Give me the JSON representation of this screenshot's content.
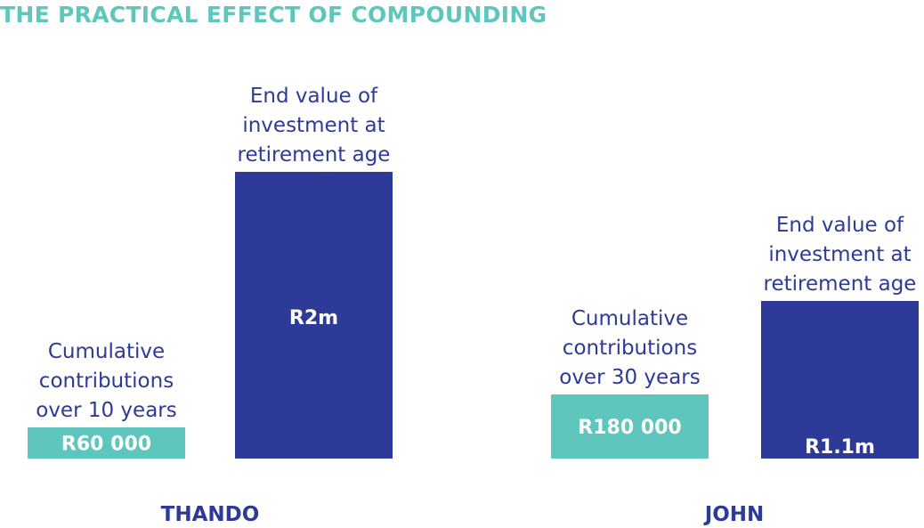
{
  "title": "THE PRACTICAL EFFECT OF COMPOUNDING",
  "colors": {
    "title": "#5ec6bd",
    "contribution_bar": "#5ec6bd",
    "end_value_bar": "#2d3a97",
    "text": "#2d3a97",
    "bar_text": "#ffffff"
  },
  "chart_data": {
    "type": "bar",
    "title": "THE PRACTICAL EFFECT OF COMPOUNDING",
    "categories": [
      "THANDO",
      "JOHN"
    ],
    "series": [
      {
        "values": [
          60000,
          180000
        ],
        "data_labels": [
          "R60 000",
          "R180 000"
        ],
        "annotations": [
          [
            "Cumulative",
            "contributions",
            "over 10 years"
          ],
          [
            "Cumulative",
            "contributions",
            "over 30 years"
          ]
        ]
      },
      {
        "values": [
          2000000,
          1100000
        ],
        "data_labels": [
          "R2m",
          "R1.1m"
        ],
        "annotations": [
          [
            "End value of",
            "investment at",
            "retirement age"
          ],
          [
            "End value of",
            "investment at",
            "retirement age"
          ]
        ]
      }
    ],
    "xlabel": "",
    "ylabel": "",
    "grid": false,
    "legend": "none"
  }
}
